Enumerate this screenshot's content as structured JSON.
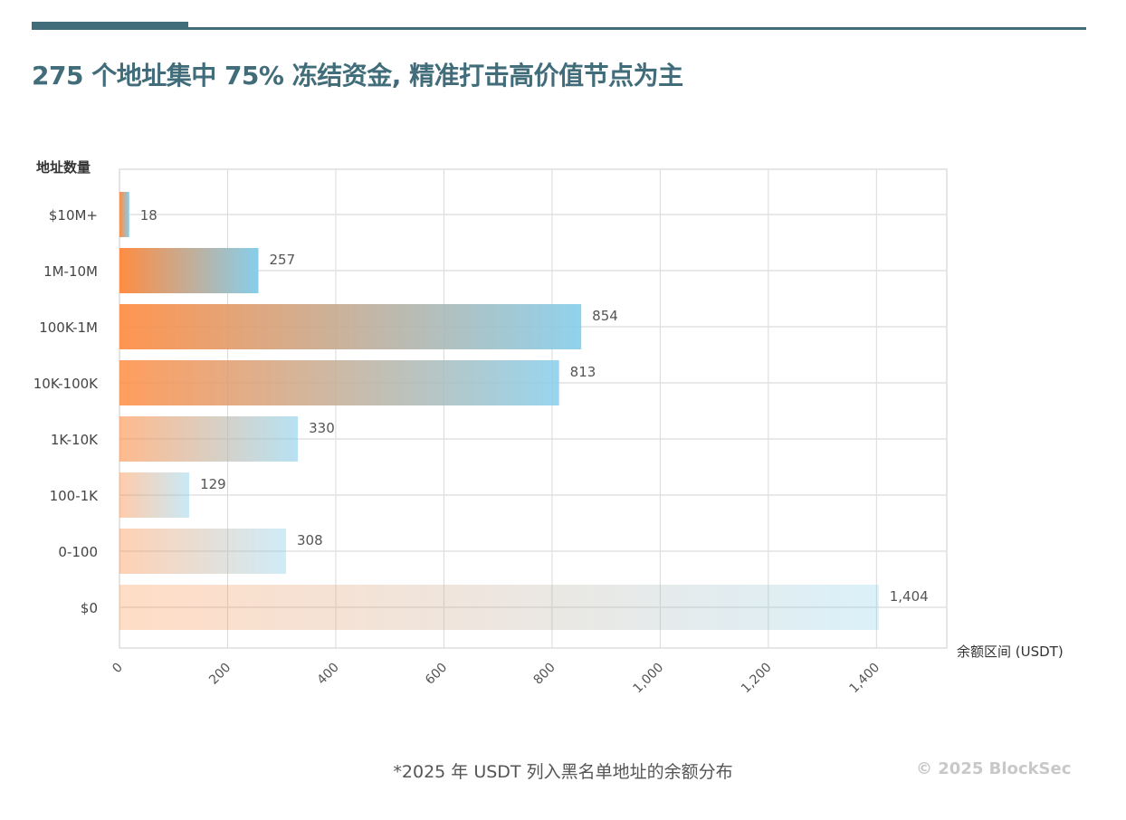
{
  "header": {
    "title": "275 个地址集中 75% 冻结资金, 精准打击高价值节点为主"
  },
  "footer": {
    "note": "*2025 年 USDT 列入黑名单地址的余额分布",
    "copyright": "© 2025 BlockSec"
  },
  "colors": {
    "accent": "#416c7a",
    "gradient_start": "#ff8c42",
    "gradient_end": "#87ceeb"
  },
  "chart_data": {
    "type": "bar",
    "orientation": "horizontal",
    "title": "",
    "ylabel": "地址数量",
    "xlabel": "余额区间 (USDT)",
    "categories": [
      "$10M+",
      "1M-10M",
      "100K-1M",
      "10K-100K",
      "1K-10K",
      "100-1K",
      "0-100",
      "$0"
    ],
    "values": [
      18,
      257,
      854,
      813,
      330,
      129,
      308,
      1404
    ],
    "value_labels": [
      "18",
      "257",
      "854",
      "813",
      "330",
      "129",
      "308",
      "1,404"
    ],
    "xlim": [
      0,
      1530
    ],
    "xticks": [
      0,
      200,
      400,
      600,
      800,
      1000,
      1200,
      1400
    ],
    "xtick_labels": [
      "0",
      "200",
      "400",
      "600",
      "800",
      "1,000",
      "1,200",
      "1,400"
    ],
    "grid": true,
    "legend": "none"
  }
}
